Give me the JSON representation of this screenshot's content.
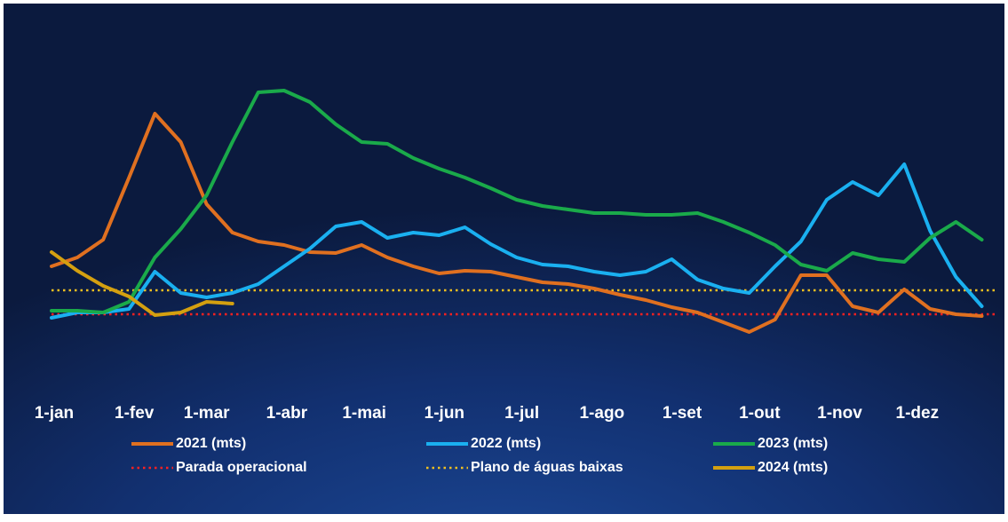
{
  "chart_data": {
    "type": "line",
    "xlim": [
      0,
      365
    ],
    "xticks": [
      {
        "value": 0,
        "label": "1-jan"
      },
      {
        "value": 31,
        "label": "1-fev"
      },
      {
        "value": 59,
        "label": "1-mar"
      },
      {
        "value": 90,
        "label": "1-abr"
      },
      {
        "value": 120,
        "label": "1-mai"
      },
      {
        "value": 151,
        "label": "1-jun"
      },
      {
        "value": 181,
        "label": "1-jul"
      },
      {
        "value": 212,
        "label": "1-ago"
      },
      {
        "value": 243,
        "label": "1-set"
      },
      {
        "value": 273,
        "label": "1-out"
      },
      {
        "value": 304,
        "label": "1-nov"
      },
      {
        "value": 334,
        "label": "1-dez"
      }
    ],
    "ylim": [
      0,
      40
    ],
    "x": [
      0,
      10,
      20,
      30,
      40,
      50,
      60,
      70,
      80,
      90,
      100,
      110,
      120,
      130,
      140,
      150,
      160,
      170,
      180,
      190,
      200,
      210,
      220,
      230,
      240,
      250,
      260,
      270,
      280,
      290,
      300,
      310,
      320,
      330,
      340,
      350,
      360
    ],
    "series": [
      {
        "name": "2021 (mts)",
        "color": "#e07020",
        "values": [
          13.0,
          14.0,
          16.0,
          23.0,
          30.2,
          27.0,
          20.0,
          16.8,
          15.8,
          15.4,
          14.6,
          14.5,
          15.4,
          14.0,
          13.0,
          12.2,
          12.5,
          12.4,
          11.8,
          11.2,
          11.0,
          10.5,
          9.8,
          9.2,
          8.4,
          7.8,
          6.7,
          5.6,
          7.0,
          12.0,
          12.0,
          8.5,
          7.8,
          10.4,
          8.2,
          7.6,
          7.4
        ]
      },
      {
        "name": "2022 (mts)",
        "color": "#1ab0f0",
        "values": [
          7.2,
          7.8,
          7.8,
          8.2,
          12.4,
          10.0,
          9.5,
          10.0,
          11.0,
          13.0,
          15.0,
          17.5,
          18.0,
          16.2,
          16.8,
          16.5,
          17.4,
          15.5,
          14.0,
          13.2,
          13.0,
          12.4,
          12.0,
          12.4,
          13.8,
          11.5,
          10.5,
          10.0,
          13.0,
          15.8,
          20.5,
          22.5,
          21.0,
          24.5,
          17.0,
          11.8,
          8.5
        ]
      },
      {
        "name": "2023 (mts)",
        "color": "#1aaa4a",
        "values": [
          8.0,
          8.0,
          7.8,
          9.0,
          14.0,
          17.2,
          21.0,
          27.0,
          32.6,
          32.8,
          31.5,
          29.0,
          27.0,
          26.8,
          25.2,
          24.0,
          23.0,
          21.8,
          20.5,
          19.8,
          19.4,
          19.0,
          19.0,
          18.8,
          18.8,
          19.0,
          18.0,
          16.8,
          15.4,
          13.2,
          12.5,
          14.5,
          13.8,
          13.5,
          16.2,
          18.0,
          16.0
        ]
      },
      {
        "name": "Parada operacional",
        "color": "#ff2020",
        "style": "dotted",
        "value": 7.6
      },
      {
        "name": "Plano de águas baixas",
        "color": "#f0c020",
        "style": "dotted",
        "value": 10.3
      },
      {
        "name": "2024 (mts)",
        "color": "#d4a010",
        "values": [
          14.6,
          12.5,
          10.8,
          9.6,
          7.5,
          7.8,
          9.0,
          8.8,
          null,
          null,
          null,
          null,
          null,
          null,
          null,
          null,
          null,
          null,
          null,
          null,
          null,
          null,
          null,
          null,
          null,
          null,
          null,
          null,
          null,
          null,
          null,
          null,
          null,
          null,
          null,
          null,
          null
        ]
      }
    ]
  }
}
